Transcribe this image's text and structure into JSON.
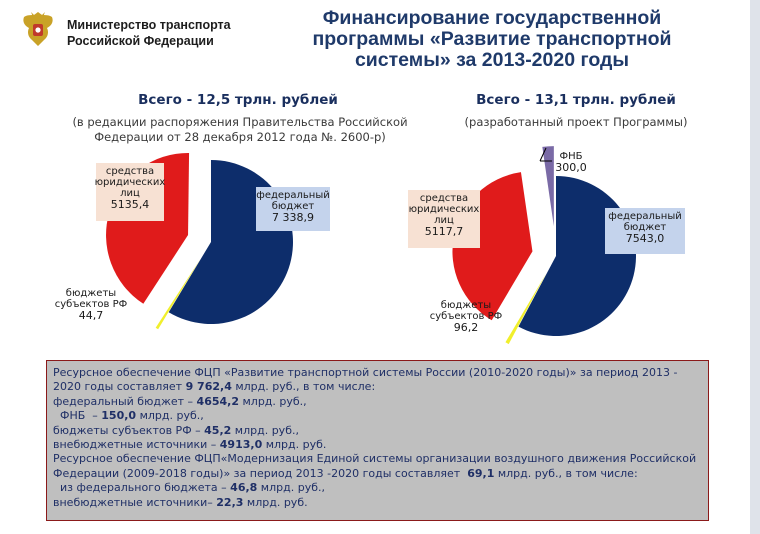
{
  "header": {
    "ministry_line1": "Министерство транспорта",
    "ministry_line2": "Российской Федерации",
    "title_line1": "Финансирование государственной",
    "title_line2": "программы «Развитие транспортной",
    "title_line3": "системы» за 2013-2020 годы"
  },
  "colors": {
    "federal": "#0d2d6b",
    "legal": "#e01b1b",
    "regions": "#f1ef2c",
    "fnb": "#7a6aa6",
    "label_bg_red": "#f7e1d3",
    "label_bg_blue": "#c4d3ec",
    "info_bg": "#bfbfbf",
    "info_border": "#8b1a1a"
  },
  "chart_data": [
    {
      "type": "pie",
      "title": "Всего - 12,5 трлн. рублей",
      "subtitle_line1": "(в редакции распоряжения Правительства Российской",
      "subtitle_line2": "Федерации от 28 декабря 2012 года №. 2600-р)",
      "slices": [
        {
          "key": "federal",
          "label_lines": [
            "федеральный",
            "бюджет"
          ],
          "value_text": "7 338,9",
          "value": 7338.9
        },
        {
          "key": "regions",
          "label_lines": [
            "бюджеты",
            "субъектов РФ"
          ],
          "value_text": "44,7",
          "value": 44.7
        },
        {
          "key": "legal",
          "label_lines": [
            "средства",
            "юридических",
            "лиц"
          ],
          "value_text": "5135,4",
          "value": 5135.4
        }
      ]
    },
    {
      "type": "pie",
      "title": "Всего - 13,1 трлн. рублей",
      "subtitle_line1": "(разработанный проект Программы)",
      "subtitle_line2": "",
      "slices": [
        {
          "key": "federal",
          "label_lines": [
            "федеральный",
            "бюджет"
          ],
          "value_text": "7543,0",
          "value": 7543.0
        },
        {
          "key": "regions",
          "label_lines": [
            "бюджеты",
            "субъектов РФ"
          ],
          "value_text": "96,2",
          "value": 96.2
        },
        {
          "key": "legal",
          "label_lines": [
            "средства",
            "юридических",
            "лиц"
          ],
          "value_text": "5117,7",
          "value": 5117.7
        },
        {
          "key": "fnb",
          "label_lines": [
            "ФНБ"
          ],
          "value_text": "300,0",
          "value": 300.0
        }
      ]
    }
  ],
  "info": {
    "lines": [
      [
        "Ресурсное обеспечение ФЦП «Развитие транспортной системы России (2010-2020 годы)» за период 2013 -"
      ],
      [
        "2020 годы составляет ",
        {
          "b": "9 762,4"
        },
        " млрд. руб., в том числе:"
      ],
      [
        "федеральный бюджет – ",
        {
          "b": "4654,2"
        },
        " млрд. руб.,"
      ],
      [
        "  ФНБ  – ",
        {
          "b": "150,0"
        },
        " млрд. руб.,"
      ],
      [
        "бюджеты субъектов РФ – ",
        {
          "b": "45,2"
        },
        " млрд. руб.,"
      ],
      [
        "внебюджетные источники – ",
        {
          "b": "4913,0"
        },
        " млрд. руб."
      ],
      [
        "Ресурсное обеспечение ФЦП«Модернизация Единой системы организации воздушного движения Российской"
      ],
      [
        "Федерации (2009-2018 годы)» за период 2013 -2020 годы составляет  ",
        {
          "b": "69,1"
        },
        " млрд. руб., в том числе:"
      ],
      [
        "  из федерального бюджета – ",
        {
          "b": "46,8"
        },
        " млрд. руб.,"
      ],
      [
        "внебюджетные источники– ",
        {
          "b": "22,3"
        },
        " млрд. руб."
      ]
    ]
  }
}
